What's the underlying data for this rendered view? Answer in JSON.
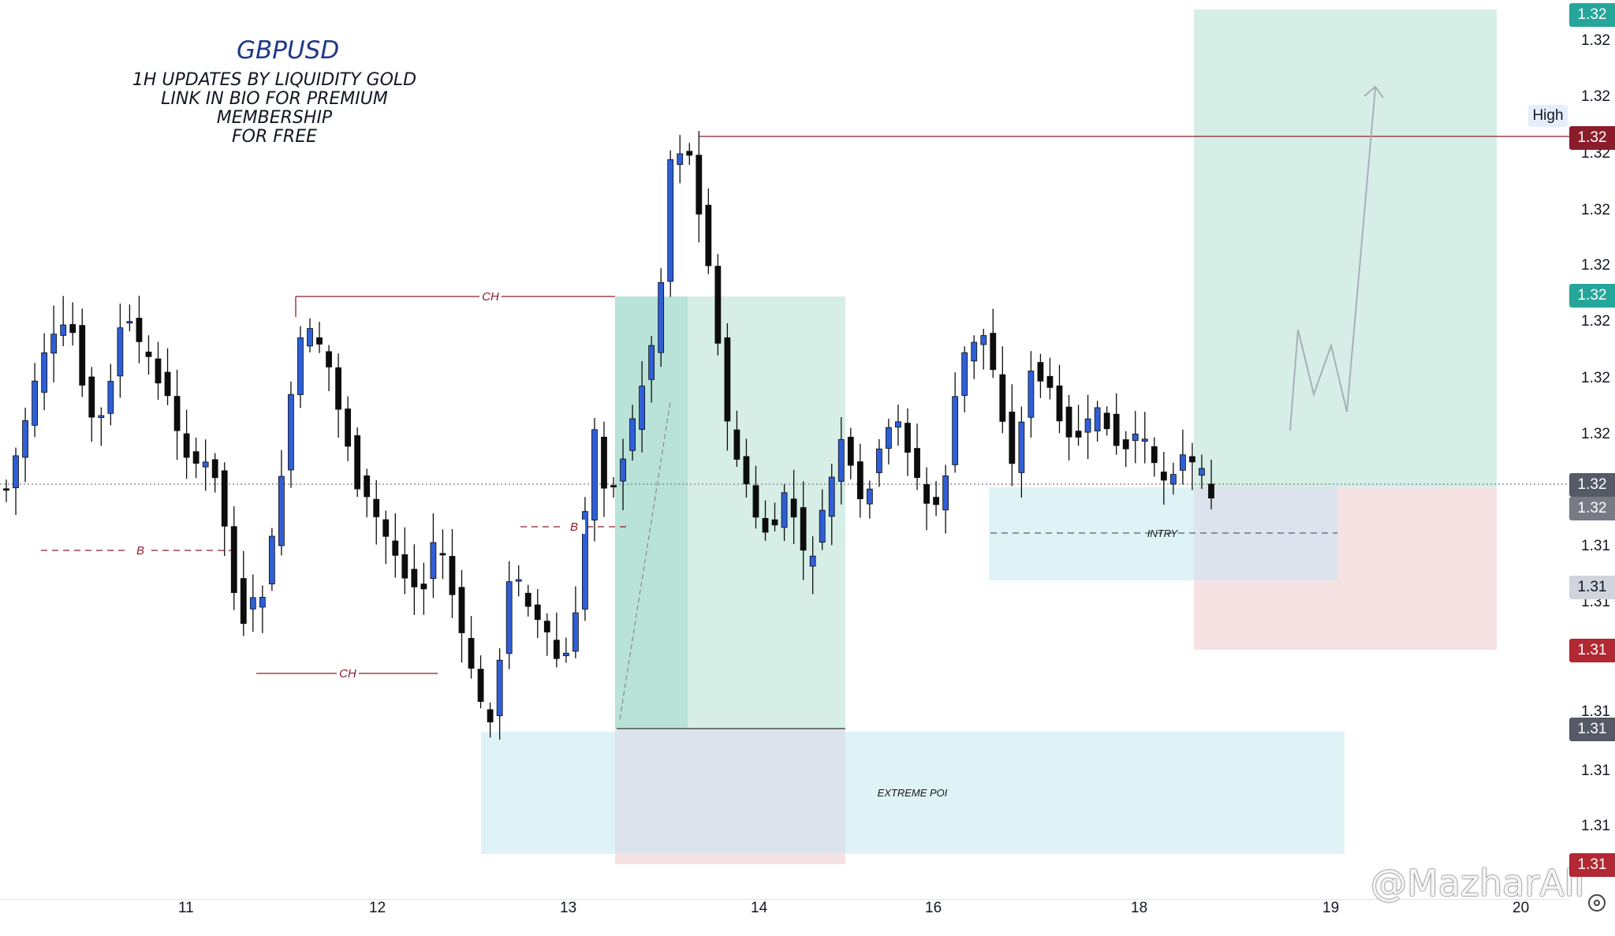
{
  "chart_data": {
    "type": "candlestick",
    "title": "GBPUSD",
    "subtitle_lines": [
      "1H UPDATES BY LIQUIDITY GOLD",
      "LINK IN BIO FOR PREMIUM MEMBERSHIP",
      "FOR FREE"
    ],
    "x_tick_labels": [
      "11",
      "12",
      "13",
      "14",
      "16",
      "18",
      "19",
      "20"
    ],
    "y_tick_labels": [
      "1.32",
      "1.32",
      "1.32",
      "1.32",
      "1.32",
      "1.32",
      "1.32",
      "1.32",
      "1.31",
      "1.31",
      "1.31",
      "1.31",
      "1.31"
    ],
    "price_tags": [
      {
        "text": "1.32",
        "color": "#26a69a"
      },
      {
        "text": "1.32",
        "color": "#8b1d2b"
      },
      {
        "text": "1.32",
        "color": "#26a69a"
      },
      {
        "text": "1.32",
        "color": "#555a66"
      },
      {
        "text": "1.32",
        "color": "#787b86"
      },
      {
        "text": "1.31",
        "color": "#d1d4dc"
      },
      {
        "text": "1.31",
        "color": "#b22833"
      },
      {
        "text": "1.31",
        "color": "#555a66"
      },
      {
        "text": "1.31",
        "color": "#b22833"
      }
    ],
    "high_label": "High",
    "annotations": [
      "CH",
      "CH",
      "B",
      "B",
      "INTRY",
      "EXTREME POI"
    ],
    "colors": {
      "up": "#2f5fd6",
      "down": "#0d0d0d",
      "high_line": "#8b1d2b",
      "tp_zone": "#d6eee6",
      "sl_zone": "#f6e2e3",
      "poi_zone": "#dff3f7"
    },
    "candle_count": 128
  },
  "watermark": "@MazharAli"
}
